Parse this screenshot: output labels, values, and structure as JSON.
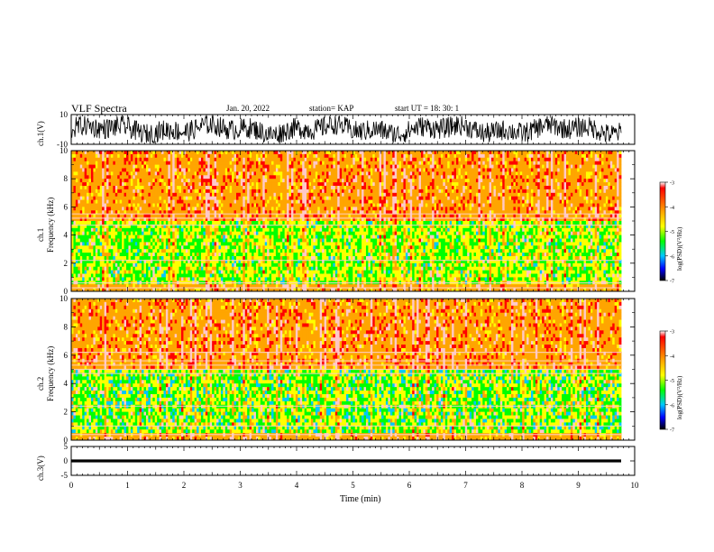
{
  "header": {
    "title": "VLF Spectra",
    "date": "Jan. 20, 2022",
    "station": "station= KAP",
    "start": "start  UT =   18: 30: 1"
  },
  "colorbar": {
    "label": "log(PSD)(V²/Hz)",
    "ticks": [
      "-3",
      "-4",
      "-5",
      "-6",
      "-7"
    ],
    "colors": [
      "#ff0000",
      "#ffa500",
      "#ffff00",
      "#00ff00",
      "#00c8ff",
      "#0000ff",
      "#000000"
    ]
  },
  "chart_data": [
    {
      "type": "line",
      "panel": "ch1-waveform",
      "ylabel": "ch.1(V)",
      "ylim": [
        -10,
        10
      ],
      "yticks": [
        "10",
        "-10"
      ],
      "xlim": [
        0,
        10
      ],
      "description_values": "dense waveform oscillating roughly between -9 and +9 V"
    },
    {
      "type": "heatmap",
      "panel": "ch1-spectrogram",
      "ylabel": "ch.1\nFrequency (kHz)",
      "ylim": [
        0,
        10
      ],
      "yticks": [
        "0",
        "2",
        "4",
        "6",
        "8",
        "10"
      ],
      "xlim": [
        0,
        9.8
      ],
      "zlabel": "log(PSD)(V²/Hz)",
      "zlim": [
        -7,
        -3
      ]
    },
    {
      "type": "heatmap",
      "panel": "ch2-spectrogram",
      "ylabel": "ch.2\nFrequency (kHz)",
      "ylim": [
        0,
        10
      ],
      "yticks": [
        "0",
        "2",
        "4",
        "6",
        "8",
        "10"
      ],
      "xlim": [
        0,
        9.8
      ],
      "zlabel": "log(PSD)(V²/Hz)",
      "zlim": [
        -7,
        -3
      ]
    },
    {
      "type": "line",
      "panel": "ch3-waveform",
      "ylabel": "ch.3(V)",
      "ylim": [
        -5,
        5
      ],
      "yticks": [
        "5",
        "0",
        "-5"
      ],
      "xlim": [
        0,
        10
      ],
      "xlabel": "Time (min)",
      "xticks": [
        "0",
        "1",
        "2",
        "3",
        "4",
        "5",
        "6",
        "7",
        "8",
        "9",
        "10"
      ]
    }
  ],
  "labels": {
    "ch1_wave": "ch.1(V)",
    "ch1_spec_a": "ch.1",
    "ch1_spec_b": "Frequency (kHz)",
    "ch2_spec_a": "ch.2",
    "ch2_spec_b": "Frequency (kHz)",
    "ch3_wave": "ch.3(V)",
    "xlabel": "Time (min)"
  }
}
